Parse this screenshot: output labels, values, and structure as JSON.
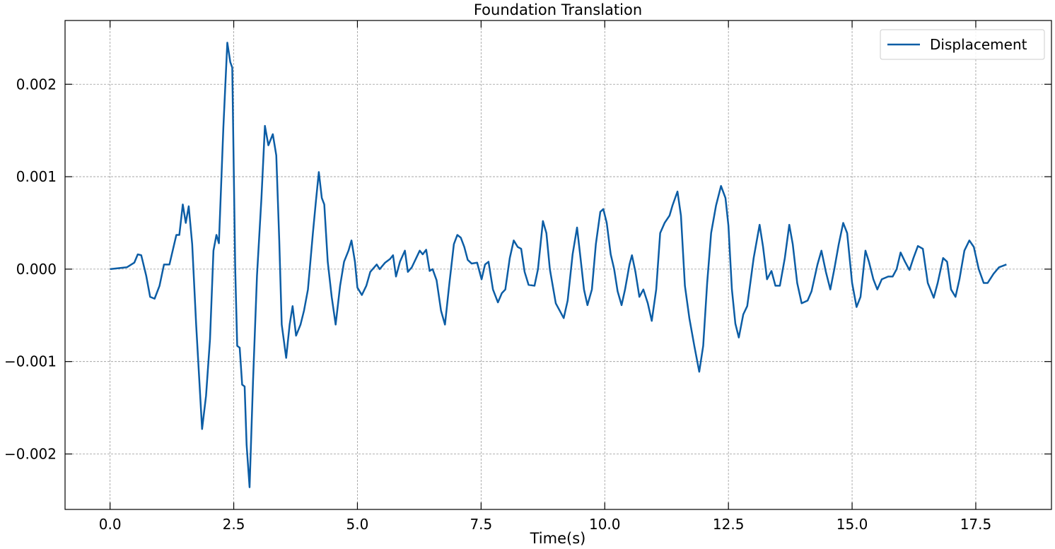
{
  "chart_data": {
    "type": "line",
    "title": "Foundation Translation",
    "x_label": "Time(s)",
    "x": [
      0,
      0.34,
      0.49,
      0.56,
      0.63,
      0.73,
      0.81,
      0.9,
      1.0,
      1.09,
      1.2,
      1.34,
      1.4,
      1.47,
      1.53,
      1.59,
      1.66,
      1.74,
      1.86,
      1.94,
      2.02,
      2.09,
      2.15,
      2.2,
      2.29,
      2.37,
      2.43,
      2.47,
      2.53,
      2.57,
      2.62,
      2.67,
      2.72,
      2.76,
      2.82,
      2.89,
      2.97,
      3.06,
      3.13,
      3.2,
      3.29,
      3.36,
      3.42,
      3.47,
      3.56,
      3.63,
      3.69,
      3.76,
      3.85,
      3.92,
      4.0,
      4.1,
      4.16,
      4.22,
      4.28,
      4.33,
      4.4,
      4.48,
      4.56,
      4.65,
      4.73,
      4.82,
      4.88,
      4.95,
      5.0,
      5.09,
      5.18,
      5.26,
      5.39,
      5.45,
      5.56,
      5.66,
      5.72,
      5.78,
      5.86,
      5.96,
      6.02,
      6.1,
      6.26,
      6.32,
      6.39,
      6.46,
      6.52,
      6.6,
      6.69,
      6.77,
      6.86,
      6.95,
      7.02,
      7.09,
      7.16,
      7.23,
      7.31,
      7.42,
      7.51,
      7.58,
      7.65,
      7.74,
      7.84,
      7.92,
      7.99,
      8.08,
      8.16,
      8.24,
      8.31,
      8.38,
      8.46,
      8.58,
      8.65,
      8.75,
      8.82,
      8.89,
      9.01,
      9.17,
      9.25,
      9.35,
      9.44,
      9.51,
      9.58,
      9.65,
      9.74,
      9.82,
      9.91,
      9.97,
      10.04,
      10.12,
      10.19,
      10.26,
      10.34,
      10.41,
      10.5,
      10.55,
      10.62,
      10.7,
      10.78,
      10.87,
      10.95,
      11.04,
      11.12,
      11.21,
      11.31,
      11.37,
      11.47,
      11.54,
      11.62,
      11.71,
      11.81,
      11.91,
      11.99,
      12.07,
      12.15,
      12.25,
      12.35,
      12.44,
      12.5,
      12.57,
      12.64,
      12.71,
      12.8,
      12.88,
      13.01,
      13.13,
      13.2,
      13.28,
      13.37,
      13.45,
      13.54,
      13.64,
      13.73,
      13.8,
      13.89,
      13.98,
      14.1,
      14.18,
      14.3,
      14.38,
      14.47,
      14.56,
      14.64,
      14.73,
      14.82,
      14.9,
      15.0,
      15.09,
      15.17,
      15.27,
      15.34,
      15.43,
      15.51,
      15.6,
      15.73,
      15.82,
      15.9,
      15.98,
      16.07,
      16.16,
      16.24,
      16.33,
      16.43,
      16.53,
      16.65,
      16.73,
      16.84,
      16.92,
      17.0,
      17.09,
      17.17,
      17.27,
      17.37,
      17.46,
      17.56,
      17.66,
      17.74,
      17.86,
      17.97,
      18.12
    ],
    "series": [
      {
        "name": "Displacement",
        "color": "#0c5da5",
        "values": [
          0,
          2e-05,
          7e-05,
          0.00016,
          0.00015,
          -7e-05,
          -0.0003,
          -0.00032,
          -0.00018,
          5e-05,
          5e-05,
          0.00037,
          0.00037,
          0.0007,
          0.0005,
          0.00068,
          0.00027,
          -0.0006,
          -0.00173,
          -0.00137,
          -0.00076,
          0.0002,
          0.00037,
          0.00028,
          0.00153,
          0.00245,
          0.00224,
          0.00218,
          0.0,
          -0.00083,
          -0.00085,
          -0.00125,
          -0.00127,
          -0.0019,
          -0.00236,
          -0.00121,
          -7e-05,
          0.00077,
          0.00155,
          0.00134,
          0.00146,
          0.00123,
          0.00031,
          -0.0006,
          -0.00096,
          -0.0006,
          -0.0004,
          -0.00072,
          -0.0006,
          -0.00045,
          -0.00022,
          0.00039,
          0.00073,
          0.00105,
          0.00077,
          0.0007,
          8e-05,
          -0.0003,
          -0.0006,
          -0.00018,
          8e-05,
          0.0002,
          0.00031,
          8e-05,
          -0.0002,
          -0.00028,
          -0.00018,
          -3e-05,
          5e-05,
          0.0,
          7e-05,
          0.00011,
          0.00015,
          -8e-05,
          8e-05,
          0.0002,
          -3e-05,
          2e-05,
          0.0002,
          0.00016,
          0.00021,
          -2e-05,
          0.0,
          -0.00012,
          -0.00045,
          -0.0006,
          -0.00015,
          0.00027,
          0.00037,
          0.00034,
          0.00024,
          0.0001,
          6e-05,
          7e-05,
          -0.00011,
          5e-05,
          8e-05,
          -0.00022,
          -0.00036,
          -0.00026,
          -0.00022,
          0.00012,
          0.00031,
          0.00024,
          0.00022,
          -3e-05,
          -0.00017,
          -0.00018,
          0.0,
          0.00052,
          0.00039,
          0.0,
          -0.00037,
          -0.00053,
          -0.00034,
          0.00016,
          0.00045,
          0.00012,
          -0.00022,
          -0.00039,
          -0.00022,
          0.00027,
          0.00062,
          0.00065,
          0.0005,
          0.00016,
          0.0,
          -0.00024,
          -0.00039,
          -0.00022,
          5e-05,
          0.00015,
          -3e-05,
          -0.0003,
          -0.00022,
          -0.00037,
          -0.00056,
          -0.00022,
          0.00039,
          0.0005,
          0.00058,
          0.00069,
          0.00084,
          0.00058,
          -0.00018,
          -0.00053,
          -0.00083,
          -0.00111,
          -0.00083,
          -0.00015,
          0.00039,
          0.00069,
          0.0009,
          0.00077,
          0.00047,
          -0.00022,
          -0.00059,
          -0.00074,
          -0.00049,
          -0.0004,
          0.00012,
          0.00048,
          0.00024,
          -0.00011,
          -2e-05,
          -0.00018,
          -0.00018,
          0.00012,
          0.00048,
          0.00027,
          -0.00015,
          -0.00037,
          -0.00034,
          -0.00024,
          5e-05,
          0.0002,
          -3e-05,
          -0.00022,
          0.0,
          0.00027,
          0.0005,
          0.00039,
          -0.00015,
          -0.00041,
          -0.0003,
          0.0002,
          8e-05,
          -0.00011,
          -0.00022,
          -0.00011,
          -8e-05,
          -8e-05,
          0.0,
          0.00018,
          8e-05,
          -1e-05,
          0.00012,
          0.00025,
          0.00022,
          -0.00015,
          -0.00031,
          -0.00015,
          0.00012,
          8e-05,
          -0.00022,
          -0.0003,
          -0.00011,
          0.0002,
          0.00031,
          0.00024,
          0.0,
          -0.00015,
          -0.00015,
          -5e-05,
          2e-05,
          5e-05
        ]
      }
    ],
    "xlim": [
      -0.91,
      19.03
    ],
    "ylim": [
      -0.0026,
      0.00269
    ],
    "xticks": [
      {
        "value": 0,
        "label": "0.0"
      },
      2.5,
      {
        "value": 5,
        "label": "5.0"
      },
      7.5,
      {
        "value": 10,
        "label": "10.0"
      },
      12.5,
      {
        "value": 15,
        "label": "15.0"
      },
      17.5
    ],
    "yticks": [
      {
        "value": -0.002,
        "label": "−0.002"
      },
      {
        "value": -0.001,
        "label": "−0.001"
      },
      {
        "value": 0,
        "label": "0.000"
      },
      {
        "value": 0.001,
        "label": "0.001"
      },
      {
        "value": 0.002,
        "label": "0.002"
      }
    ],
    "grid": true,
    "legend": "upper right"
  }
}
